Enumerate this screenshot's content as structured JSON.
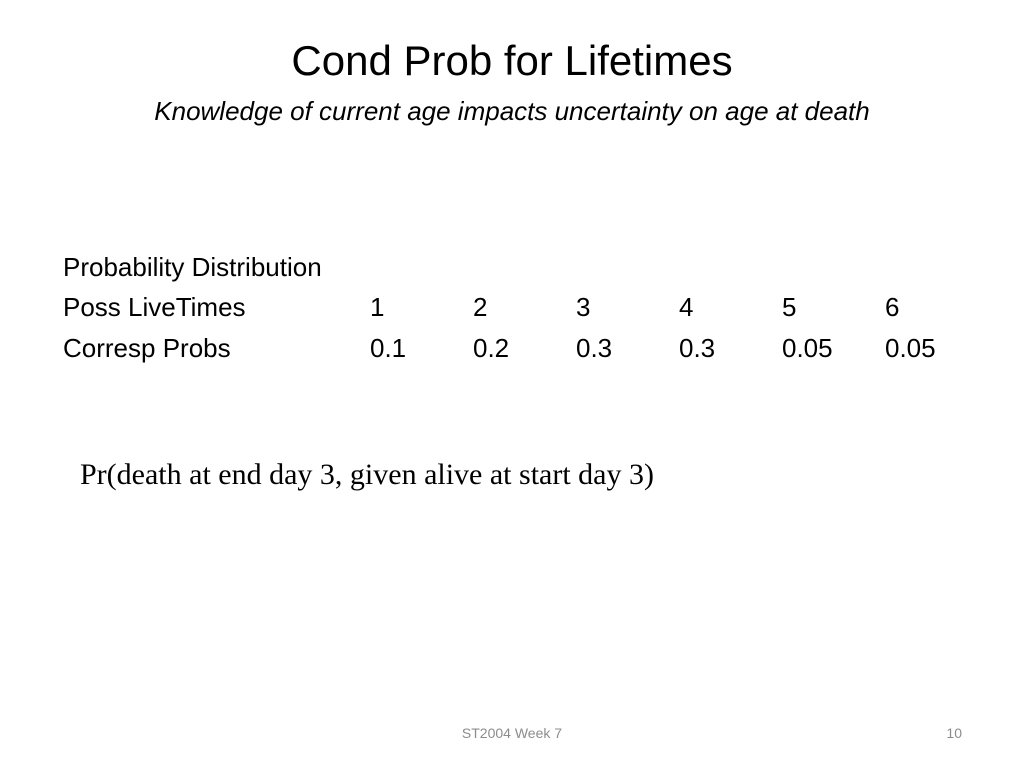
{
  "slide": {
    "title": "Cond Prob for Lifetimes",
    "subtitle": "Knowledge of current age impacts uncertainty on age at death",
    "distribution": {
      "heading": "Probability Distribution",
      "rows": [
        {
          "label": "Poss LiveTimes",
          "values": [
            "1",
            "2",
            "3",
            "4",
            "5",
            "6"
          ]
        },
        {
          "label": "Corresp Probs",
          "values": [
            "0.1",
            "0.2",
            "0.3",
            "0.3",
            "0.05",
            "0.05"
          ]
        }
      ]
    },
    "question": "Pr(death at end day 3, given alive at start day 3)"
  },
  "footer": {
    "course": "ST2004 Week 7",
    "page_number": "10"
  },
  "colors": {
    "background": "#ffffff",
    "text": "#000000",
    "footer_text": "#8c8c8c"
  }
}
